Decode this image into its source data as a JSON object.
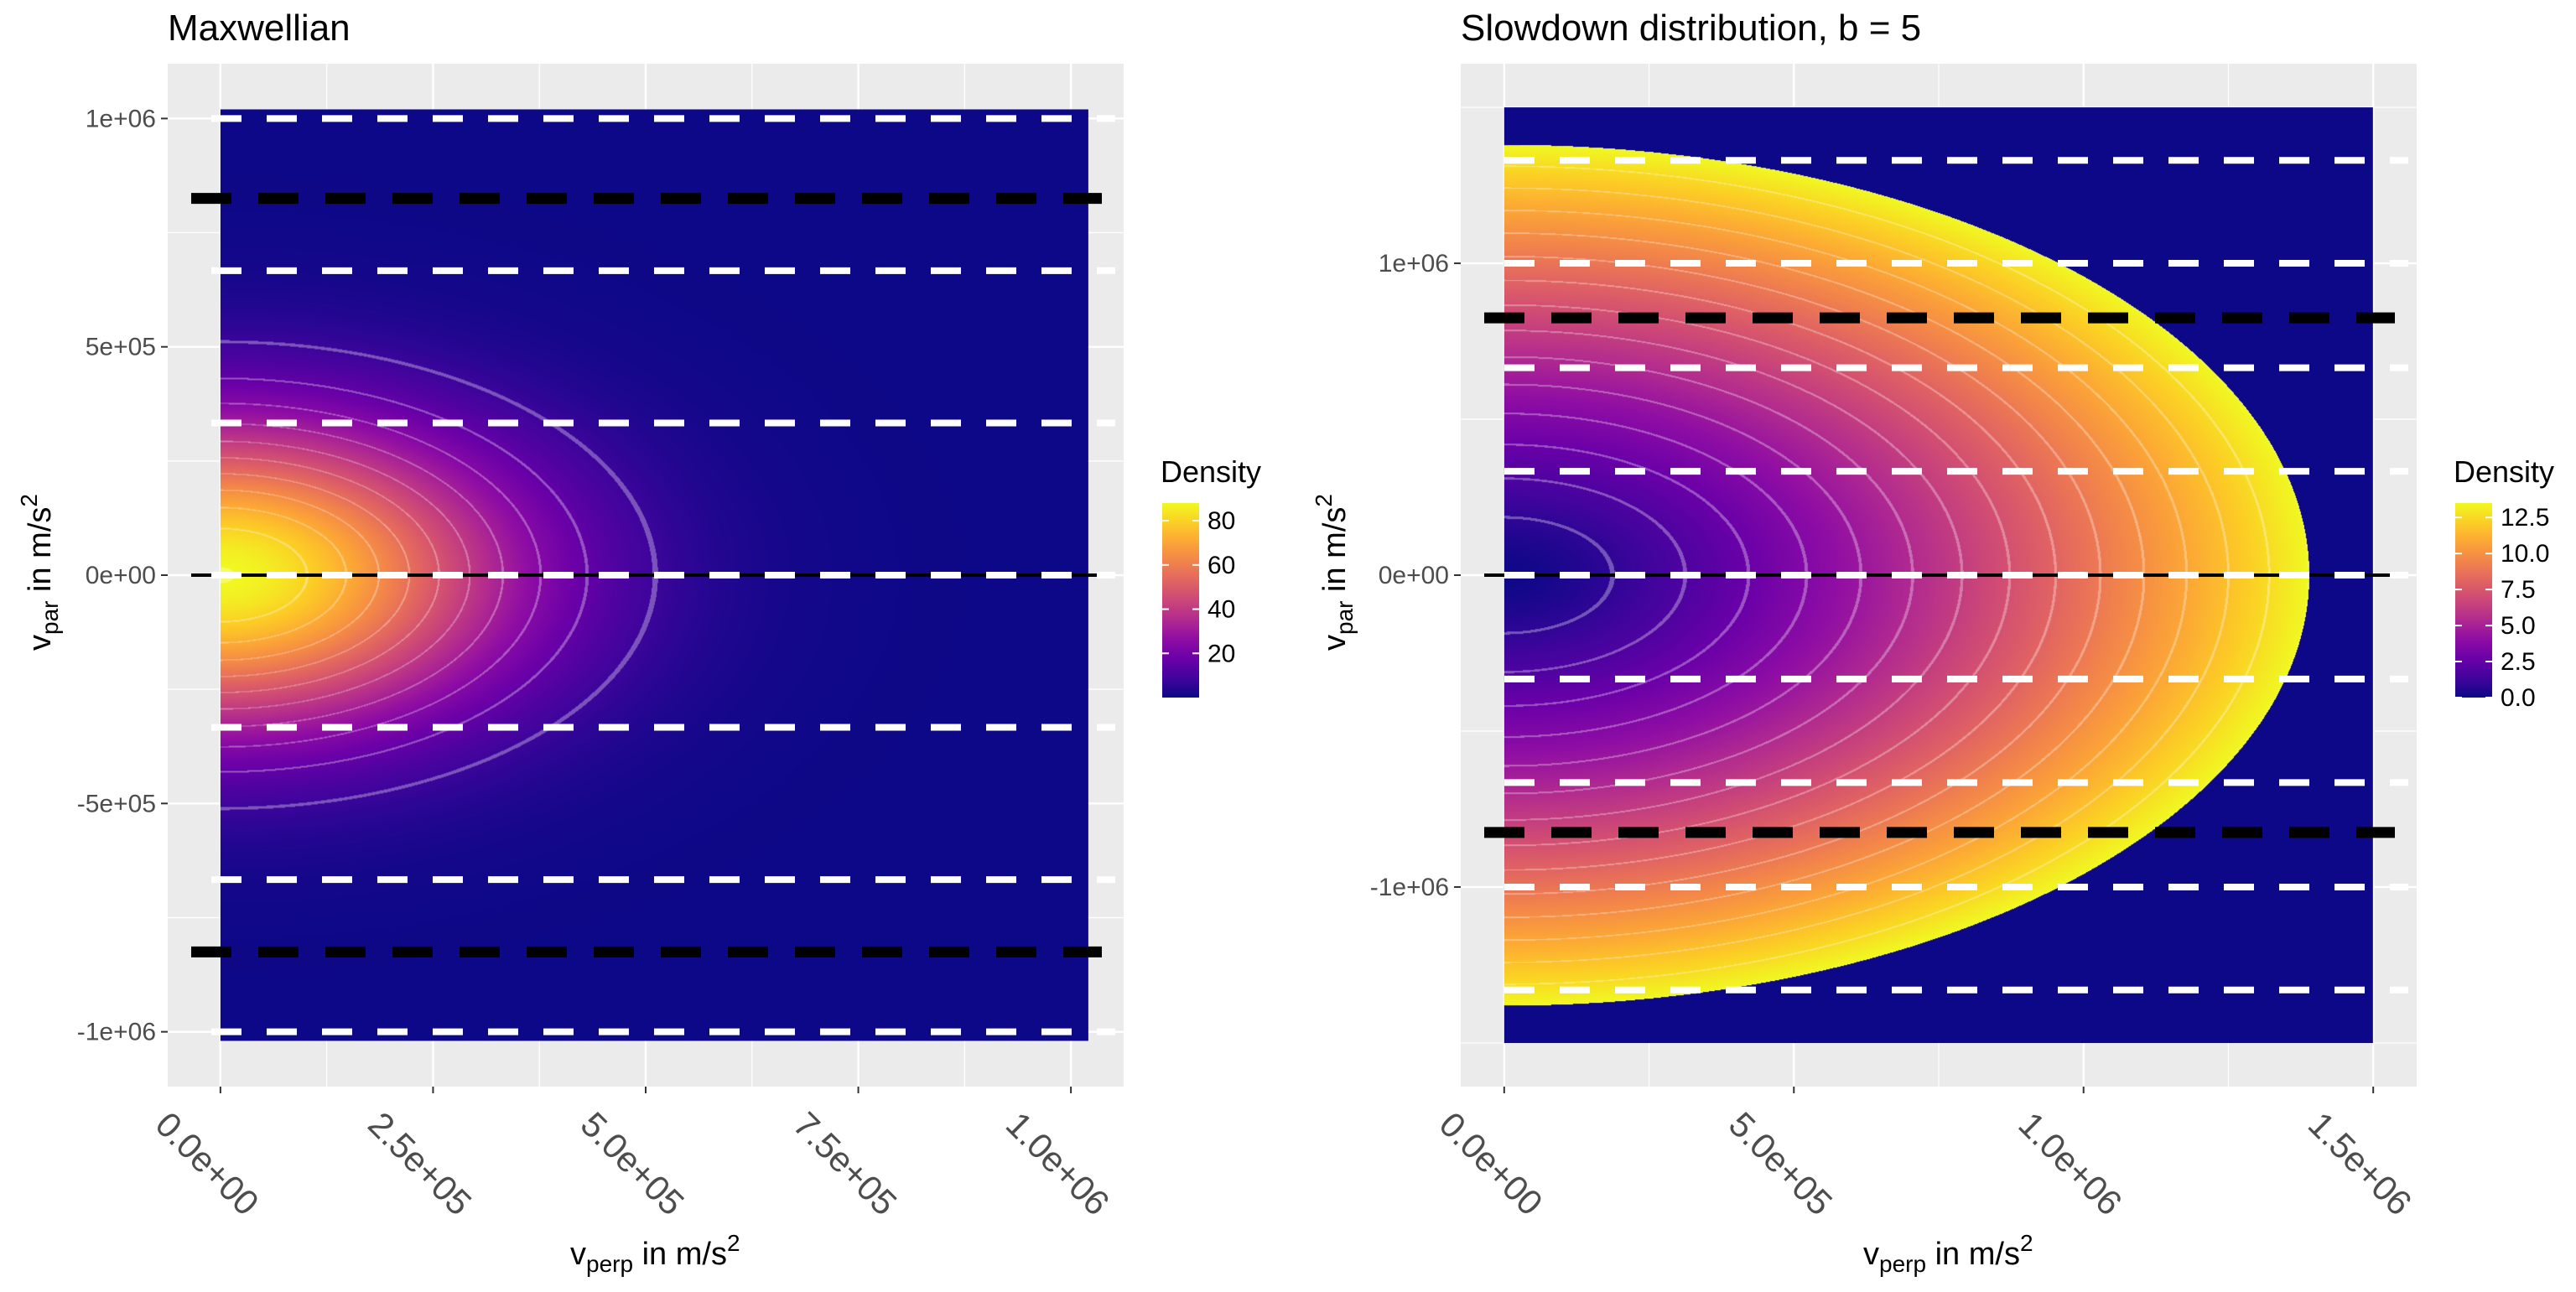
{
  "chart_data": [
    {
      "type": "heatmap",
      "title": "Maxwellian",
      "xlabel": {
        "main": "v",
        "sub": "perp",
        "rest": " in m/s",
        "sup": "2"
      },
      "ylabel": {
        "main": "v",
        "sub": "par",
        "rest": " in m/s",
        "sup": "2"
      },
      "x_range": [
        0,
        1020000
      ],
      "y_range": [
        -1020000,
        1020000
      ],
      "xlim": [
        -62000,
        1062000
      ],
      "ylim": [
        -1120000,
        1120000
      ],
      "x_ticks": [
        0,
        250000,
        500000,
        750000,
        1000000
      ],
      "x_tick_labels": [
        "0.0e+00",
        "2.5e+05",
        "5.0e+05",
        "7.5e+05",
        "1.0e+06"
      ],
      "y_ticks": [
        1000000,
        500000,
        0,
        -500000,
        -1000000
      ],
      "y_tick_labels": [
        "1e+06",
        "5e+05",
        "0e+00",
        "-5e+05",
        "-1e+06"
      ],
      "legend": {
        "title": "Density",
        "min": 0,
        "max": 88,
        "ticks": [
          20,
          40,
          60,
          80
        ],
        "tick_labels": [
          "20",
          "40",
          "60",
          "80"
        ],
        "position": "right"
      },
      "density_model": {
        "kind": "gaussian",
        "peak": 88,
        "sigma_perp": 330000,
        "sigma_par": 330000,
        "contour_step": 8
      },
      "dashed_lines_white": [
        1000000,
        666667,
        333333,
        -333333,
        -666667,
        -1000000
      ],
      "dashed_lines_black": [
        825000,
        -825000
      ],
      "dashed_line_zero": 0,
      "colorscale": "plasma",
      "grid": true
    },
    {
      "type": "heatmap",
      "title": "Slowdown distribution, b = 5",
      "xlabel": {
        "main": "v",
        "sub": "perp",
        "rest": " in m/s",
        "sup": "2"
      },
      "ylabel": {
        "main": "v",
        "sub": "par",
        "rest": " in m/s",
        "sup": "2"
      },
      "x_range": [
        0,
        1500000
      ],
      "y_range": [
        -1500000,
        1500000
      ],
      "xlim": [
        -75000,
        1575000
      ],
      "ylim": [
        -1640000,
        1640000
      ],
      "x_ticks": [
        0,
        500000,
        1000000,
        1500000
      ],
      "x_tick_labels": [
        "0.0e+00",
        "5.0e+05",
        "1.0e+06",
        "1.5e+06"
      ],
      "y_ticks": [
        1000000,
        0,
        -1000000
      ],
      "y_tick_labels": [
        "1e+06",
        "0e+00",
        "-1e+06"
      ],
      "legend": {
        "title": "Density",
        "min": 0,
        "max": 13.5,
        "ticks": [
          0,
          2.5,
          5,
          7.5,
          10,
          12.5
        ],
        "tick_labels": [
          "0.0",
          "2.5",
          "5.0",
          "7.5",
          "10.0",
          "12.5"
        ],
        "position": "right"
      },
      "density_model": {
        "kind": "slowdown",
        "b": 5,
        "cutoff_perp": 1390000,
        "cutoff_par": 1380000,
        "max": 13.5,
        "contour_step": 0.9
      },
      "dashed_lines_white": [
        1330000,
        1000000,
        665000,
        333000,
        -333000,
        -665000,
        -1000000,
        -1330000
      ],
      "dashed_lines_black": [
        825000,
        -825000
      ],
      "dashed_line_zero": 0,
      "colorscale": "plasma",
      "grid": true
    }
  ],
  "colors": {
    "panel_background": "#ebebeb",
    "grid": "#ffffff",
    "low_density": "#0d0887",
    "dash_white": "#ffffff",
    "dash_black": "#000000"
  }
}
